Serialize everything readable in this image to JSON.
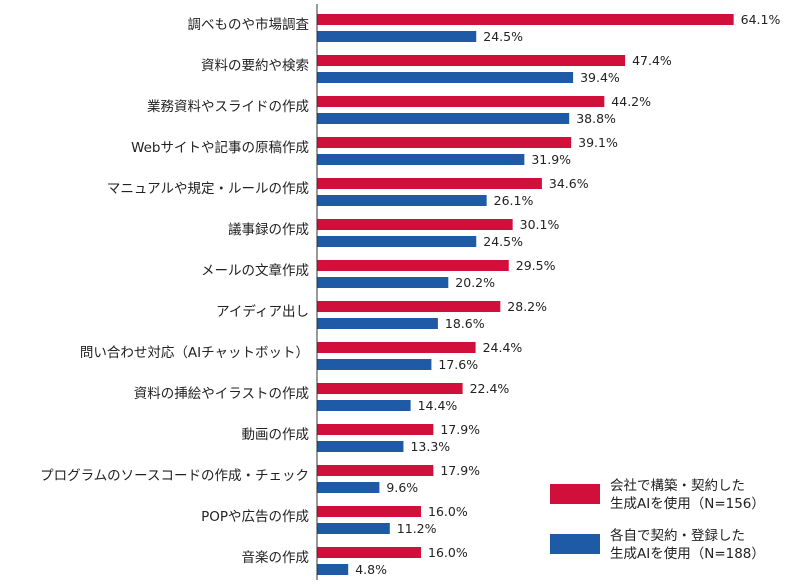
{
  "chart_data": {
    "type": "bar",
    "orientation": "horizontal",
    "categories": [
      "調べものや市場調査",
      "資料の要約や検索",
      "業務資料やスライドの作成",
      "Webサイトや記事の原稿作成",
      "マニュアルや規定・ルールの作成",
      "議事録の作成",
      "メールの文章作成",
      "アイディア出し",
      "問い合わせ対応（AIチャットボット）",
      "資料の挿絵やイラストの作成",
      "動画の作成",
      "プログラムのソースコードの作成・チェック",
      "POPや広告の作成",
      "音楽の作成"
    ],
    "series": [
      {
        "name_lines": [
          "会社で構築・契約した",
          "生成AIを使用（N=156）"
        ],
        "color": "#d0103a",
        "values": [
          64.1,
          47.4,
          44.2,
          39.1,
          34.6,
          30.1,
          29.5,
          28.2,
          24.4,
          22.4,
          17.9,
          17.9,
          16.0,
          16.0
        ],
        "labels": [
          "64.1%",
          "47.4%",
          "44.2%",
          "39.1%",
          "34.6%",
          "30.1%",
          "29.5%",
          "28.2%",
          "24.4%",
          "22.4%",
          "17.9%",
          "17.9%",
          "16.0%",
          "16.0%"
        ]
      },
      {
        "name_lines": [
          "各自で契約・登録した",
          "生成AIを使用（N=188）"
        ],
        "color": "#1f5aa6",
        "values": [
          24.5,
          39.4,
          38.8,
          31.9,
          26.1,
          24.5,
          20.2,
          18.6,
          17.6,
          14.4,
          13.3,
          9.6,
          11.2,
          4.8
        ],
        "labels": [
          "24.5%",
          "39.4%",
          "38.8%",
          "31.9%",
          "26.1%",
          "24.5%",
          "20.2%",
          "18.6%",
          "17.6%",
          "14.4%",
          "13.3%",
          "9.6%",
          "11.2%",
          "4.8%"
        ]
      }
    ],
    "unit": "%",
    "legend_position": "bottom-right",
    "grid": false
  }
}
